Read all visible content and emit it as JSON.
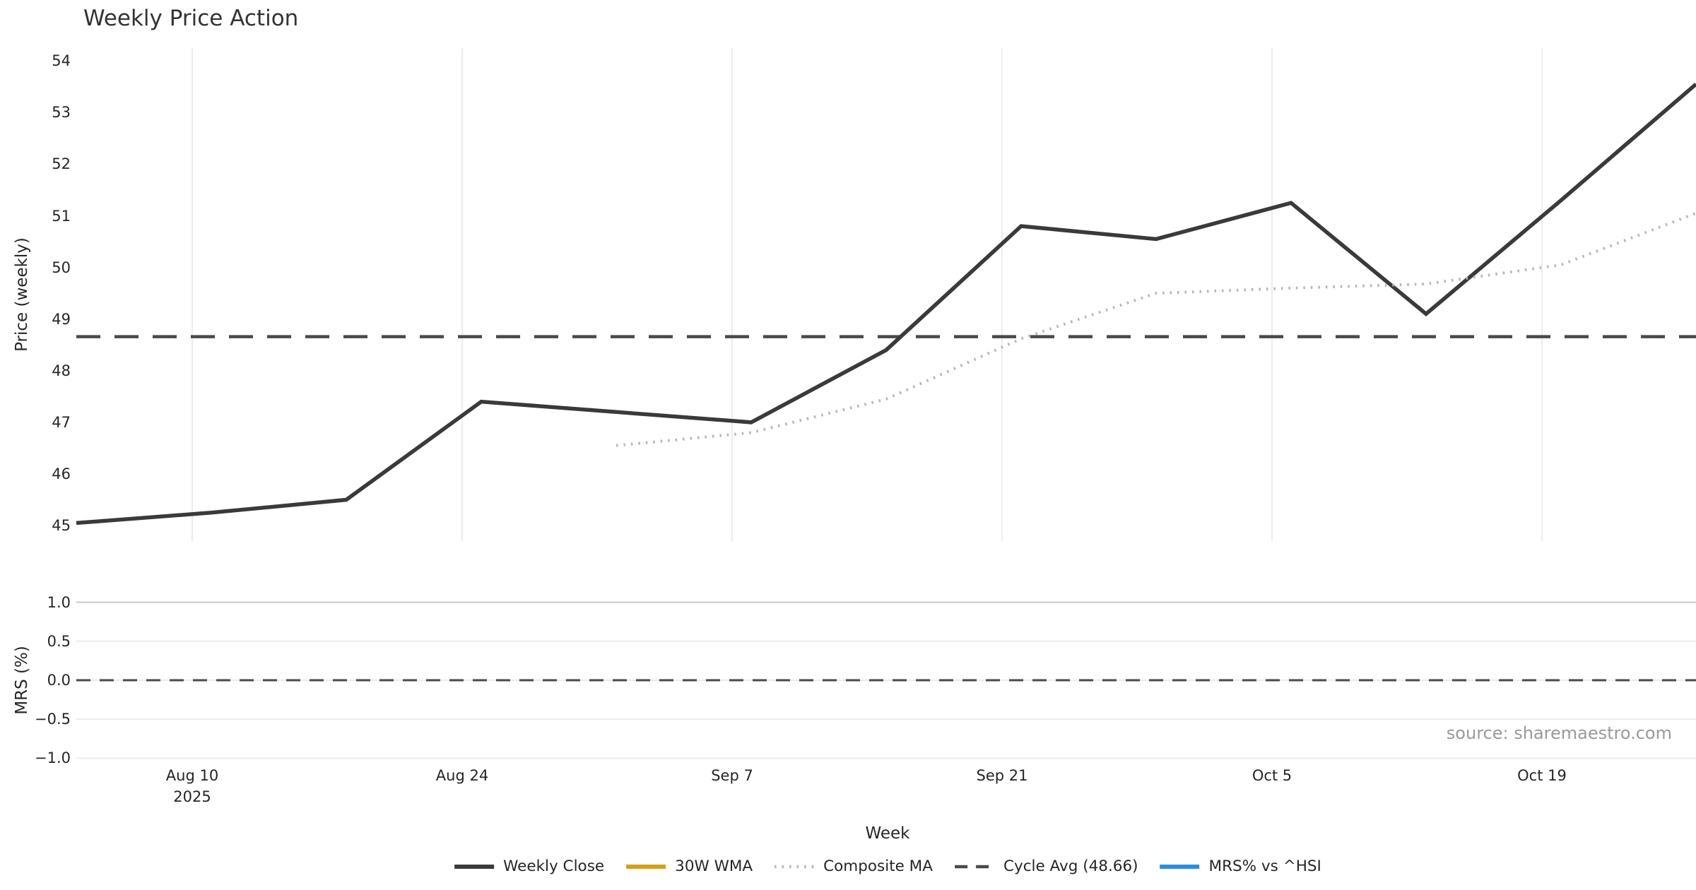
{
  "title": "Weekly Price Action",
  "source_note": "source: sharemaestro.com",
  "axes": {
    "price_axis_label": "Price (weekly)",
    "mrs_axis_label": "MRS (%)",
    "x_axis_label": "Week"
  },
  "legend": [
    {
      "label": "Weekly Close",
      "color": "#3a3a3a",
      "style": "solid"
    },
    {
      "label": "30W WMA",
      "color": "#d4a017",
      "style": "solid"
    },
    {
      "label": "Composite MA",
      "color": "#b5b5b5",
      "style": "dotted"
    },
    {
      "label": "Cycle Avg (48.66)",
      "color": "#4a4a4a",
      "style": "dashed"
    },
    {
      "label": "MRS% vs ^HSI",
      "color": "#2d8ede",
      "style": "solid"
    }
  ],
  "colors": {
    "weekly_close": "#3a3a3a",
    "wma_30w": "#d4a017",
    "composite_ma": "#b5b5b5",
    "cycle_avg": "#4a4a4a",
    "mrs_line": "#2d8ede",
    "grid_light": "#ececec",
    "grid_dark": "#c9c9c9",
    "tick_text": "#262626",
    "source_text": "#9a9a9a"
  },
  "chart_data": {
    "type": "line",
    "title": "Weekly Price Action",
    "xlabel": "Week",
    "x_tick_labels": [
      {
        "line1": "Aug 10",
        "line2": "2025"
      },
      {
        "line1": "Aug 24",
        "line2": ""
      },
      {
        "line1": "Sep 7",
        "line2": ""
      },
      {
        "line1": "Sep 21",
        "line2": ""
      },
      {
        "line1": "Oct 5",
        "line2": ""
      },
      {
        "line1": "Oct 19",
        "line2": ""
      }
    ],
    "weeks": [
      "Aug 4",
      "Aug 11",
      "Aug 18",
      "Aug 25",
      "Sep 1",
      "Sep 8",
      "Sep 15",
      "Sep 22",
      "Sep 29",
      "Oct 6",
      "Oct 13",
      "Oct 20",
      "Oct 27"
    ],
    "panels": [
      {
        "name": "price",
        "ylabel": "Price (weekly)",
        "ylim": [
          44.7,
          54.25
        ],
        "yticks": [
          54,
          53,
          52,
          51,
          50,
          49,
          48,
          47,
          46,
          45
        ],
        "grid": "vertical",
        "series": [
          {
            "name": "Weekly Close",
            "style": "solid",
            "color": "#3a3a3a",
            "width": 5.5,
            "x": [
              "Aug 4",
              "Aug 11",
              "Aug 18",
              "Aug 25",
              "Sep 1",
              "Sep 8",
              "Sep 15",
              "Sep 22",
              "Sep 29",
              "Oct 6",
              "Oct 13",
              "Oct 20",
              "Oct 27"
            ],
            "values": [
              45.05,
              45.25,
              45.5,
              47.4,
              47.2,
              47.0,
              48.4,
              50.8,
              50.55,
              51.25,
              49.1,
              51.3,
              53.55
            ]
          },
          {
            "name": "Composite MA",
            "style": "dotted",
            "color": "#b5b5b5",
            "width": 4,
            "x": [
              "Sep 1",
              "Sep 8",
              "Sep 15",
              "Sep 22",
              "Sep 29",
              "Oct 6",
              "Oct 13",
              "Oct 20",
              "Oct 27"
            ],
            "values": [
              46.55,
              46.8,
              47.45,
              48.62,
              49.5,
              49.6,
              49.68,
              50.05,
              51.05
            ]
          },
          {
            "name": "30W WMA",
            "style": "solid",
            "color": "#d4a017",
            "width": 5,
            "x": [],
            "values": []
          },
          {
            "name": "Cycle Avg",
            "style": "dashed",
            "color": "#4a4a4a",
            "width": 4.5,
            "constant": 48.66
          }
        ]
      },
      {
        "name": "mrs",
        "ylabel": "MRS (%)",
        "ylim": [
          -1.15,
          1.15
        ],
        "yticks_labels": [
          "1.0",
          "0.5",
          "0.0",
          "−0.5",
          "−1.0"
        ],
        "yticks": [
          1.0,
          0.5,
          0.0,
          -0.5,
          -1.0
        ],
        "grid": "horizontal",
        "series": [
          {
            "name": "MRS% vs ^HSI",
            "style": "solid",
            "color": "#2d8ede",
            "width": 4,
            "x": [],
            "values": []
          },
          {
            "name": "Zero line",
            "style": "dashed",
            "color": "#4a4a4a",
            "width": 3,
            "constant": 0.0
          }
        ]
      }
    ],
    "legend_position": "bottom-center",
    "annotations": [
      "source: sharemaestro.com"
    ]
  }
}
